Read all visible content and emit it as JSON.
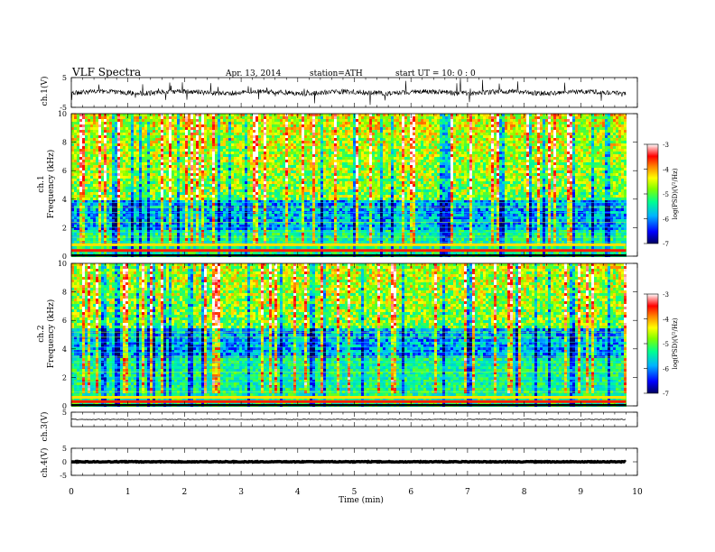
{
  "header": {
    "title": "VLF  Spectra",
    "date": "Apr. 13, 2014",
    "station": "station=ATH",
    "start": "start  UT  =   10: 0  : 0"
  },
  "chart_data": [
    {
      "type": "line",
      "name": "ch1-waveform",
      "ylabel": "ch.1(V)",
      "ylim": [
        -5,
        5
      ],
      "yticks": [
        "5",
        "-5"
      ],
      "xlim": [
        0,
        10
      ]
    },
    {
      "type": "heatmap",
      "name": "ch1-spectrogram",
      "ylabel": "ch.1\nFrequency (kHz)",
      "ylabel_lines": [
        "ch.1",
        "Frequency (kHz)"
      ],
      "ylim": [
        0,
        10
      ],
      "yticks": [
        "0",
        "2",
        "4",
        "6",
        "8",
        "10"
      ],
      "xlim": [
        0,
        9.8
      ],
      "colorbar": {
        "label": "log(PSD)(V²/Hz)",
        "range": [
          -7,
          -3
        ],
        "ticks": [
          "-3",
          "-4",
          "-5",
          "-6",
          "-7"
        ],
        "colors": [
          "#000080",
          "#0000ff",
          "#00c8ff",
          "#00ff80",
          "#80ff00",
          "#ffff00",
          "#ff8000",
          "#ff0000",
          "#ffb0b0",
          "#ffffff"
        ]
      },
      "noise_floor_band_khz": [
        2,
        4
      ],
      "strong_lines_khz": [
        0.4,
        0.8
      ]
    },
    {
      "type": "heatmap",
      "name": "ch2-spectrogram",
      "ylabel": "ch.2\nFrequency (kHz)",
      "ylabel_lines": [
        "ch.2",
        "Frequency (kHz)"
      ],
      "ylim": [
        0,
        10
      ],
      "yticks": [
        "0",
        "2",
        "4",
        "6",
        "8",
        "10"
      ],
      "xlim": [
        0,
        9.8
      ],
      "colorbar": {
        "label": "log(PSD)(V²/Hz)",
        "range": [
          -7,
          -3
        ],
        "ticks": [
          "-3",
          "-4",
          "-5",
          "-6",
          "-7"
        ]
      },
      "noise_floor_band_khz": [
        3.5,
        5.5
      ],
      "strong_lines_khz": [
        0.3,
        0.6
      ]
    },
    {
      "type": "line",
      "name": "ch3-waveform",
      "ylabel": "ch.3(V)",
      "ylim": [
        -5,
        5
      ],
      "yticks": [
        "5"
      ],
      "xlim": [
        0,
        9.8
      ],
      "level": 0
    },
    {
      "type": "line",
      "name": "ch4-waveform",
      "ylabel": "ch.4(V)",
      "ylim": [
        -5,
        5
      ],
      "yticks": [
        "5",
        "0",
        "-5"
      ],
      "xlim": [
        0,
        9.8
      ],
      "level": 0
    }
  ],
  "x_axis": {
    "label": "Time  (min)",
    "ticks": [
      "0",
      "1",
      "2",
      "3",
      "4",
      "5",
      "6",
      "7",
      "8",
      "9",
      "10"
    ],
    "range": [
      0,
      10
    ]
  }
}
